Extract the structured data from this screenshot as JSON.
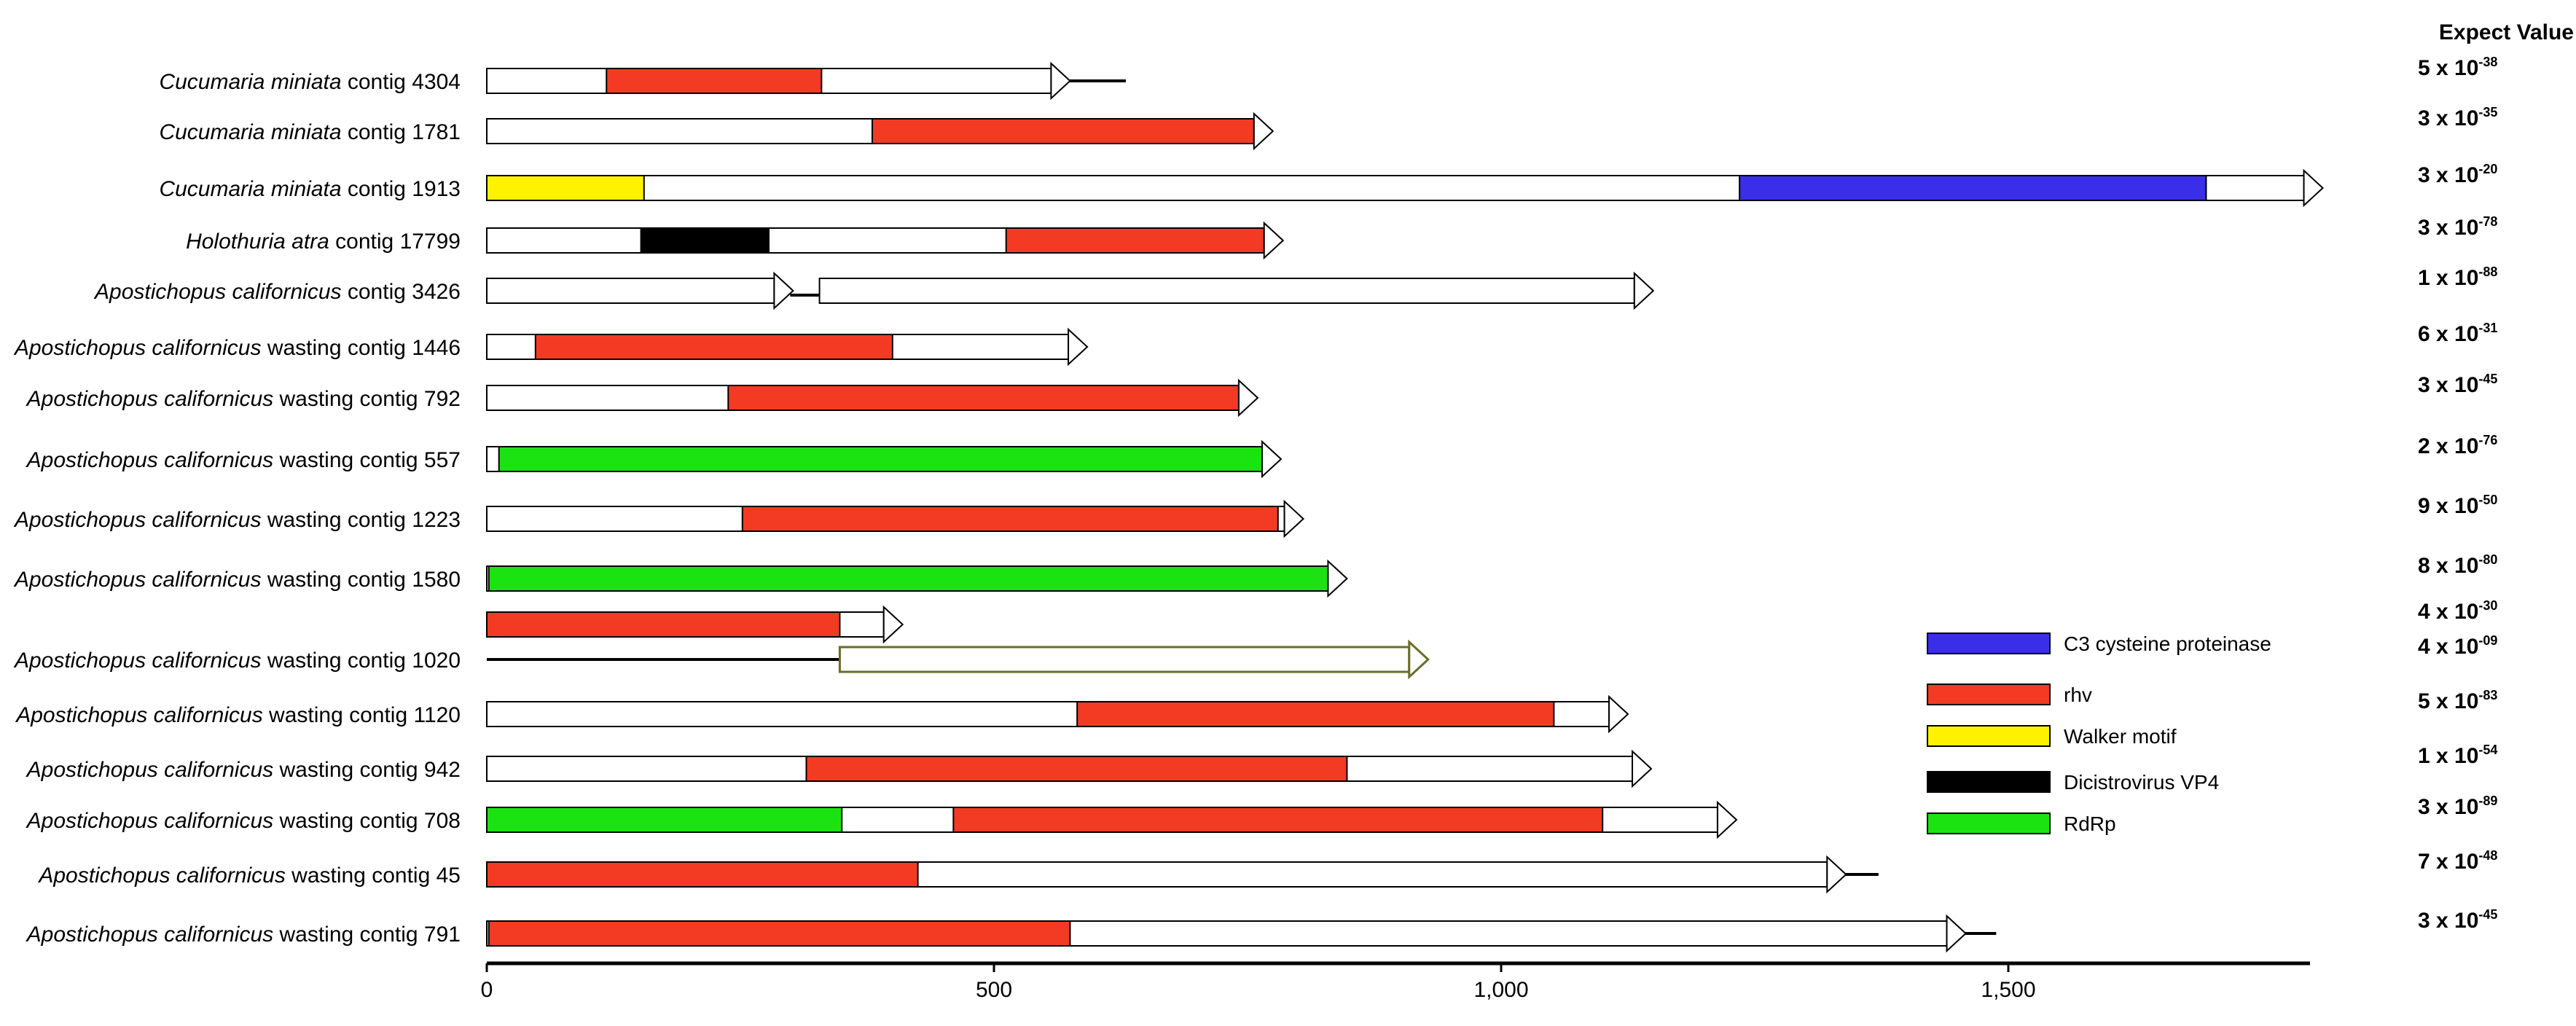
{
  "header": {
    "expect_value_title": "Expect Value"
  },
  "axis": {
    "ticks": [
      {
        "value": 0,
        "label": "0"
      },
      {
        "value": 500,
        "label": "500"
      },
      {
        "value": 1000,
        "label": "1,000"
      },
      {
        "value": 1500,
        "label": "1,500"
      }
    ],
    "max": 1800
  },
  "colors": {
    "C3": "#3a2ee8",
    "rhv": "#f23b22",
    "walker": "#fff200",
    "vp4": "#000000",
    "rdrp": "#1be312",
    "olive_outline": "#6b6b2a"
  },
  "legend": [
    {
      "key": "C3",
      "label": "C3 cysteine proteinase"
    },
    {
      "key": "rhv",
      "label": "rhv"
    },
    {
      "key": "walker",
      "label": "Walker motif"
    },
    {
      "key": "vp4",
      "label": "Dicistrovirus VP4"
    },
    {
      "key": "rdrp",
      "label": "RdRp"
    }
  ],
  "contigs": [
    {
      "species": "Cucumaria miniata",
      "suffix": " contig 4304",
      "ev": {
        "m": "5",
        "e": "-38"
      },
      "arrows": [
        {
          "start": 0,
          "end": 575,
          "domains": [
            {
              "key": "rhv",
              "start": 118,
              "end": 330
            }
          ]
        }
      ],
      "tail": {
        "start": 575,
        "end": 630
      }
    },
    {
      "species": "Cucumaria miniata",
      "suffix": " contig 1781",
      "ev": {
        "m": "3",
        "e": "-35"
      },
      "arrows": [
        {
          "start": 0,
          "end": 775,
          "domains": [
            {
              "key": "rhv",
              "start": 380,
              "end": 758
            }
          ]
        }
      ]
    },
    {
      "species": "Cucumaria miniata",
      "suffix": " contig 1913",
      "ev": {
        "m": "3",
        "e": "-20"
      },
      "arrows": [
        {
          "start": 0,
          "end": 1810,
          "domains": [
            {
              "key": "walker",
              "start": 0,
              "end": 155
            },
            {
              "key": "C3",
              "start": 1235,
              "end": 1695
            }
          ]
        }
      ]
    },
    {
      "species": "Holothuria atra",
      "suffix": " contig 17799",
      "ev": {
        "m": "3",
        "e": "-78"
      },
      "arrows": [
        {
          "start": 0,
          "end": 785,
          "domains": [
            {
              "key": "vp4",
              "start": 152,
              "end": 278
            },
            {
              "key": "rhv",
              "start": 512,
              "end": 768
            }
          ]
        }
      ]
    },
    {
      "species": "Apostichopus californicus",
      "suffix": " contig 3426",
      "ev": {
        "m": "1",
        "e": "-88"
      },
      "arrows": [
        {
          "start": 0,
          "end": 302,
          "domains": []
        },
        {
          "start": 328,
          "end": 1150,
          "domains": []
        }
      ],
      "link": {
        "start": 302,
        "end": 328
      }
    },
    {
      "species": "Apostichopus californicus",
      "suffix": " wasting contig 1446",
      "ev": {
        "m": "6",
        "e": "-31"
      },
      "arrows": [
        {
          "start": 0,
          "end": 592,
          "domains": [
            {
              "key": "rhv",
              "start": 48,
              "end": 400
            }
          ]
        }
      ]
    },
    {
      "species": "Apostichopus californicus",
      "suffix": " wasting contig 792",
      "ev": {
        "m": "3",
        "e": "-45"
      },
      "arrows": [
        {
          "start": 0,
          "end": 760,
          "domains": [
            {
              "key": "rhv",
              "start": 238,
              "end": 745
            }
          ]
        }
      ]
    },
    {
      "species": "Apostichopus californicus",
      "suffix": " wasting contig 557",
      "ev": {
        "m": "2",
        "e": "-76"
      },
      "arrows": [
        {
          "start": 0,
          "end": 783,
          "domains": [
            {
              "key": "rdrp",
              "start": 12,
              "end": 768
            }
          ]
        }
      ]
    },
    {
      "species": "Apostichopus californicus",
      "suffix": " wasting contig 1223",
      "ev": {
        "m": "9",
        "e": "-50"
      },
      "arrows": [
        {
          "start": 0,
          "end": 805,
          "domains": [
            {
              "key": "rhv",
              "start": 252,
              "end": 780
            }
          ]
        }
      ]
    },
    {
      "species": "Apostichopus californicus",
      "suffix": " wasting contig 1580",
      "ev": {
        "m": "8",
        "e": "-80"
      },
      "arrows": [
        {
          "start": 0,
          "end": 848,
          "domains": [
            {
              "key": "rdrp",
              "start": 2,
              "end": 830
            }
          ]
        }
      ]
    },
    {
      "species": "",
      "suffix": "",
      "ev": {
        "m": "4",
        "e": "-30"
      },
      "arrows": [
        {
          "start": 0,
          "end": 410,
          "domains": [
            {
              "key": "rhv",
              "start": 0,
              "end": 348
            }
          ]
        }
      ]
    },
    {
      "species": "Apostichopus californicus",
      "suffix": " wasting contig 1020",
      "ev": {
        "m": "4",
        "e": "-09"
      },
      "arrows": [
        {
          "start": 348,
          "end": 928,
          "outline": "olive_outline",
          "domains": []
        }
      ],
      "line": {
        "start": 0,
        "end": 348
      }
    },
    {
      "species": "Apostichopus californicus",
      "suffix": " wasting contig 1120",
      "ev": {
        "m": "5",
        "e": "-83"
      },
      "arrows": [
        {
          "start": 0,
          "end": 1125,
          "domains": [
            {
              "key": "rhv",
              "start": 582,
              "end": 1052
            }
          ]
        }
      ]
    },
    {
      "species": "Apostichopus californicus",
      "suffix": " wasting contig 942",
      "ev": {
        "m": "1",
        "e": "-54"
      },
      "arrows": [
        {
          "start": 0,
          "end": 1148,
          "domains": [
            {
              "key": "rhv",
              "start": 315,
              "end": 848
            }
          ]
        }
      ]
    },
    {
      "species": "Apostichopus californicus",
      "suffix": " wasting contig 708",
      "ev": {
        "m": "3",
        "e": "-89"
      },
      "arrows": [
        {
          "start": 0,
          "end": 1232,
          "domains": [
            {
              "key": "rdrp",
              "start": 0,
              "end": 350
            },
            {
              "key": "rhv",
              "start": 460,
              "end": 1100
            }
          ]
        }
      ]
    },
    {
      "species": "Apostichopus californicus",
      "suffix": " wasting contig 45",
      "ev": {
        "m": "7",
        "e": "-48"
      },
      "arrows": [
        {
          "start": 0,
          "end": 1340,
          "domains": [
            {
              "key": "rhv",
              "start": 0,
              "end": 425
            }
          ]
        }
      ],
      "tail": {
        "start": 1340,
        "end": 1372
      }
    },
    {
      "species": "Apostichopus californicus",
      "suffix": " wasting contig 791",
      "ev": {
        "m": "3",
        "e": "-45"
      },
      "arrows": [
        {
          "start": 0,
          "end": 1458,
          "domains": [
            {
              "key": "rhv",
              "start": 2,
              "end": 575
            }
          ]
        }
      ],
      "tail": {
        "start": 1458,
        "end": 1488
      }
    }
  ]
}
